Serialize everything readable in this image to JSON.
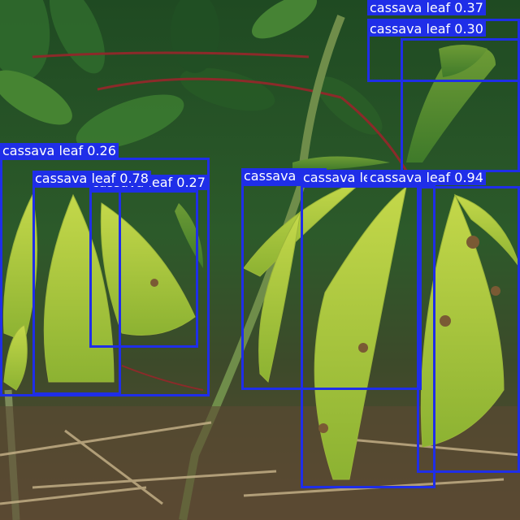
{
  "image": {
    "subject": "cassava plants with yellow-green mottled leaves over dry ground",
    "colors": {
      "box": "#1f2ee8",
      "label_text": "#ffffff",
      "soil": "#4a3a26",
      "leaf_dark": "#1f5a25",
      "leaf_yellow": "#b9cf3a"
    }
  },
  "detections": [
    {
      "class": "cassava leaf",
      "score": "0.37"
    },
    {
      "class": "cassava leaf",
      "score": "0.30"
    },
    {
      "class": "cassava leaf",
      "score": "0.26"
    },
    {
      "class": "cassava leaf",
      "score": "0.78"
    },
    {
      "class": "cassava leaf",
      "score": "0.27"
    },
    {
      "class": "cassava leaf",
      "score": "0.94"
    },
    {
      "class": "cassava leaf",
      "score": ""
    },
    {
      "class": "cassava leaf",
      "score": ""
    }
  ]
}
